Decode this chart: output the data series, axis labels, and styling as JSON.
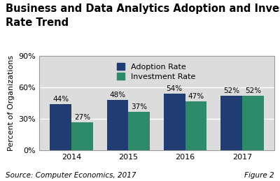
{
  "title": "Business and Data Analytics Adoption and Investment\nRate Trend",
  "ylabel": "Percent of Organizations",
  "years": [
    "2014",
    "2015",
    "2016",
    "2017"
  ],
  "adoption_rates": [
    44,
    48,
    54,
    52
  ],
  "investment_rates": [
    27,
    37,
    47,
    52
  ],
  "adoption_color": "#1F3D72",
  "investment_color": "#2E8B6A",
  "bar_width": 0.38,
  "ylim": [
    0,
    90
  ],
  "yticks": [
    0,
    30,
    60,
    90
  ],
  "ytick_labels": [
    "0%",
    "30%",
    "60%",
    "90%"
  ],
  "plot_bg_color": "#DCDCDC",
  "legend_labels": [
    "Adoption Rate",
    "Investment Rate"
  ],
  "source_text": "Source: Computer Economics, 2017",
  "figure_label": "Figure 2",
  "title_fontsize": 10.5,
  "axis_fontsize": 8,
  "label_fontsize": 7.5,
  "legend_fontsize": 8,
  "source_fontsize": 7.5
}
